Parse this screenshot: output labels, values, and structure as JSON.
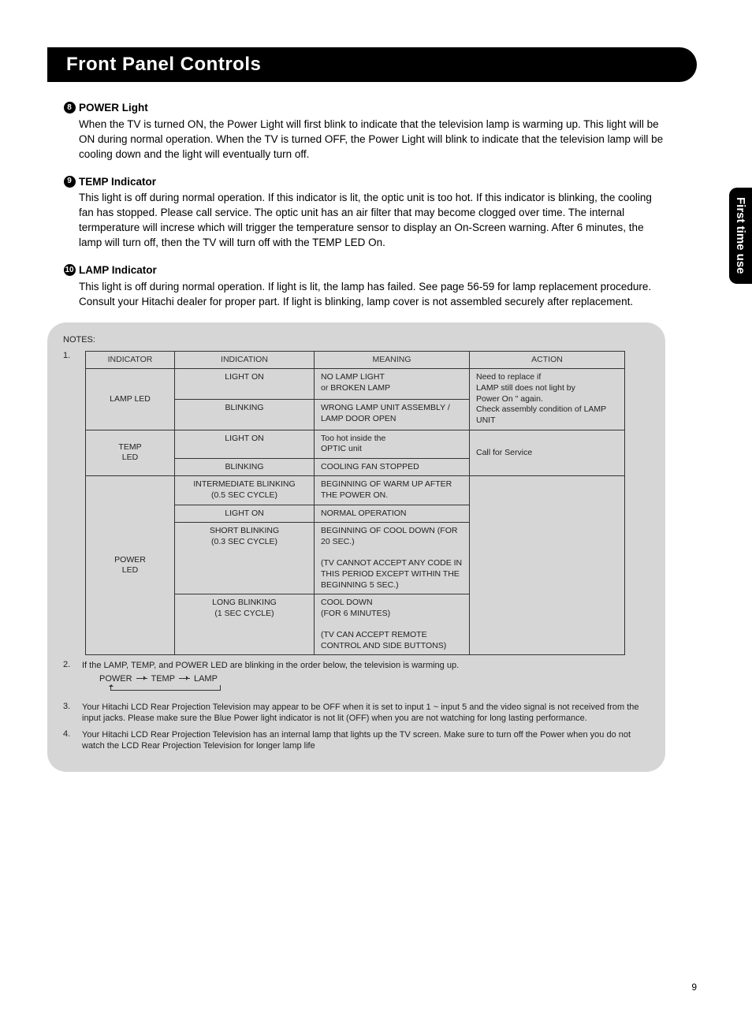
{
  "title": "Front Panel Controls",
  "side_tab": "First time use",
  "items": [
    {
      "num": "8",
      "title": "POWER Light",
      "text": "When the TV is turned ON, the Power Light will first blink to indicate that the television lamp is warming up.  This light will be ON during normal operation.  When the TV is turned OFF, the Power Light will blink to indicate that the television lamp will be cooling down and the light will eventually turn off."
    },
    {
      "num": "9",
      "title": "TEMP Indicator",
      "text": "This light is off during normal operation.  If this indicator is lit, the optic unit is too hot.  If this indicator is blinking, the cooling fan has stopped.  Please call service.  The optic unit has an air filter that may become clogged over time.  The internal termperature will increse which will trigger the temperature sensor to display an On-Screen warning.  After 6 minutes, the lamp will turn off, then the TV will turn off with the TEMP LED On."
    },
    {
      "num": "10",
      "title": "LAMP Indicator",
      "text": "This light is off during normal operation. If light is lit, the lamp has failed.  See page 56-59 for lamp replacement procedure.  Consult your Hitachi dealer for proper part.  If light is blinking, lamp cover is not assembled securely after replacement."
    }
  ],
  "notes_label": "NOTES:",
  "table": {
    "headers": [
      "INDICATOR",
      "INDICATION",
      "MEANING",
      "ACTION"
    ],
    "lamp_led_label": "LAMP LED",
    "lamp_rows": [
      {
        "indication": "LIGHT ON",
        "meaning": "NO LAMP LIGHT\nor BROKEN LAMP"
      },
      {
        "indication": "BLINKING",
        "meaning": "WRONG LAMP UNIT ASSEMBLY / LAMP DOOR OPEN"
      }
    ],
    "lamp_action": "Need to replace if\nLAMP still does not light by\nPower On \" again.\nCheck assembly condition of LAMP UNIT",
    "temp_led_label": "TEMP\nLED",
    "temp_rows": [
      {
        "indication": "LIGHT ON",
        "meaning": "Too hot inside the\nOPTIC unit"
      },
      {
        "indication": "BLINKING",
        "meaning": "COOLING FAN STOPPED"
      }
    ],
    "temp_action": "Call for Service",
    "power_led_label": "POWER\nLED",
    "power_rows": [
      {
        "indication": "INTERMEDIATE BLINKING\n(0.5 SEC CYCLE)",
        "meaning": "BEGINNING OF WARM UP AFTER THE POWER ON."
      },
      {
        "indication": "LIGHT ON",
        "meaning": "NORMAL OPERATION"
      },
      {
        "indication": "SHORT BLINKING\n(0.3 SEC CYCLE)",
        "meaning": "BEGINNING OF COOL DOWN (FOR 20 SEC.)\n\n(TV CANNOT ACCEPT ANY CODE IN THIS PERIOD EXCEPT WITHIN THE BEGINNING 5 SEC.)"
      },
      {
        "indication": "LONG BLINKING\n(1 SEC CYCLE)",
        "meaning": "COOL DOWN\n(FOR 6 MINUTES)\n\n(TV CAN ACCEPT REMOTE CONTROL AND SIDE BUTTONS)"
      }
    ]
  },
  "notes": [
    {
      "n": "2.",
      "text_pre": "If the LAMP, TEMP, and POWER LED are blinking in the order below, the television is warming up.",
      "seq": [
        "POWER",
        "TEMP",
        "LAMP"
      ]
    },
    {
      "n": "3.",
      "text": "Your Hitachi LCD Rear Projection Television may appear to be OFF when it is set to input 1 ~ input 5 and the video signal is not received from the input jacks.  Please make sure the Blue Power light indicator is not lit (OFF) when you are not watching for long lasting performance."
    },
    {
      "n": "4.",
      "text": "Your Hitachi LCD Rear Projection Television has an internal lamp that lights up the TV screen.  Make sure to turn off the Power when you do not watch the LCD Rear Projection Television for longer lamp life"
    }
  ],
  "page_num": "9"
}
